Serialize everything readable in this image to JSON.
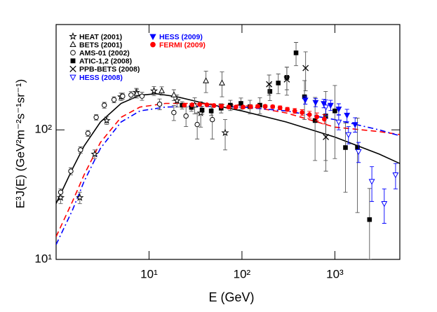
{
  "chart_data": {
    "type": "scatter",
    "xlabel": "E (GeV)",
    "ylabel": "E³J(E) (GeV²m⁻²s⁻¹sr⁻¹)",
    "xlog": true,
    "ylog": true,
    "xlim": [
      1,
      5000
    ],
    "ylim": [
      10,
      650
    ],
    "xticks": [
      {
        "value": 10,
        "label": "10¹"
      },
      {
        "value": 100,
        "label": "10²"
      },
      {
        "value": 1000,
        "label": "10³"
      }
    ],
    "yticks": [
      {
        "value": 10,
        "label": "10¹"
      },
      {
        "value": 100,
        "label": "10²"
      }
    ],
    "series": [
      {
        "name": "HEAT (2001)",
        "color": "#000000",
        "marker": "star",
        "x": [
          1.12,
          1.8,
          2.6,
          3.5,
          5,
          7.3,
          11.3,
          20,
          36,
          66
        ],
        "values": [
          30,
          30,
          65,
          118,
          180,
          195,
          200,
          168,
          135,
          95
        ],
        "errors": [
          3,
          3,
          5,
          8,
          12,
          14,
          16,
          18,
          30,
          25
        ]
      },
      {
        "name": "BETS (2001)",
        "color": "#000000",
        "marker": "triangle-up",
        "x": [
          7.4,
          13.7,
          18.5,
          31,
          41,
          61
        ],
        "values": [
          191,
          200,
          186,
          155,
          239,
          230
        ],
        "errors": [
          15,
          15,
          18,
          22,
          45,
          50
        ]
      },
      {
        "name": "AMS-01 (2002)",
        "color": "#000000",
        "marker": "circle",
        "x": [
          1.12,
          1.44,
          1.83,
          2.2,
          2.7,
          3.3,
          4.2,
          5.2,
          6.4,
          8.4,
          13,
          18.5,
          25,
          33,
          48
        ],
        "values": [
          33,
          48,
          70,
          94,
          125,
          155,
          171,
          182,
          186,
          182,
          158,
          136,
          128,
          110,
          120
        ],
        "errors": [
          2,
          3,
          4,
          5,
          6,
          8,
          9,
          10,
          12,
          13,
          15,
          18,
          22,
          25,
          35
        ]
      },
      {
        "name": "ATIC-1,2 (2008)",
        "color": "#000000",
        "marker": "square",
        "x": [
          22.7,
          28.6,
          37.2,
          46.7,
          59.7,
          75,
          97.5,
          122,
          156,
          200,
          246,
          304,
          382,
          471,
          612,
          796,
          1000,
          1300,
          1750,
          2360
        ],
        "values": [
          155,
          149,
          142,
          140,
          147,
          155,
          160,
          151,
          155,
          198,
          230,
          254,
          393,
          180,
          118,
          128,
          140,
          73,
          73,
          20.3
        ],
        "errors": [
          10,
          10,
          10,
          11,
          12,
          14,
          16,
          18,
          22,
          30,
          40,
          50,
          80,
          60,
          60,
          70,
          80,
          40,
          50,
          15
        ]
      },
      {
        "name": "PPB-BETS (2008)",
        "color": "#000000",
        "marker": "cross",
        "x": [
          196,
          304,
          484,
          800
        ],
        "values": [
          225,
          245,
          300,
          88
        ],
        "errors": [
          40,
          60,
          100,
          40
        ]
      },
      {
        "name": "HESS (2008)",
        "color": "#0000ff",
        "marker": "triangle-down",
        "x": [
          800,
          1100,
          1400,
          1800,
          2500,
          3400,
          4500
        ],
        "values": [
          150,
          115,
          92,
          68,
          40,
          27,
          45
        ],
        "errors": [
          20,
          15,
          14,
          12,
          12,
          8,
          10
        ]
      },
      {
        "name": "HESS (2009)",
        "color": "#0000ff",
        "marker": "triangle-down-filled",
        "x": [
          480,
          620,
          760,
          900,
          1100,
          1350,
          1650
        ],
        "values": [
          170,
          163,
          160,
          155,
          145,
          130,
          110
        ],
        "errors": [
          12,
          12,
          12,
          14,
          14,
          14,
          14
        ]
      },
      {
        "name": "FERMI (2009)",
        "color": "#ff0000",
        "marker": "circle-filled",
        "x": [
          24,
          29,
          35,
          42,
          50,
          60,
          72,
          86,
          103,
          124,
          148,
          178,
          214,
          257,
          308,
          370,
          444,
          533,
          640,
          770
        ],
        "values": [
          155,
          156,
          157,
          156,
          154,
          152,
          150,
          150,
          150,
          151,
          152,
          152,
          151,
          148,
          144,
          140,
          136,
          131,
          126,
          121
        ],
        "errors": [
          3,
          3,
          3,
          3,
          3,
          3,
          3,
          3,
          3,
          4,
          4,
          4,
          4,
          5,
          5,
          6,
          7,
          8,
          9,
          10
        ]
      }
    ],
    "curves": [
      {
        "color": "#000000",
        "dash": "solid",
        "x": [
          1,
          1.5,
          2,
          3,
          5,
          8,
          12,
          20,
          40,
          100,
          300,
          1000,
          3000,
          5000
        ],
        "values": [
          27,
          50,
          75,
          115,
          160,
          185,
          190,
          180,
          160,
          140,
          115,
          88,
          65,
          55
        ]
      },
      {
        "color": "#ff0000",
        "dash": "dashed",
        "x": [
          1,
          1.5,
          2,
          3,
          5,
          8,
          15,
          30,
          100,
          300,
          1000,
          3000,
          5000
        ],
        "values": [
          15,
          28,
          45,
          80,
          125,
          150,
          160,
          160,
          155,
          135,
          105,
          97,
          92
        ]
      },
      {
        "color": "#0000ff",
        "dash": "dash-dot",
        "x": [
          1,
          1.5,
          2,
          3,
          5,
          8,
          15,
          30,
          100,
          300,
          1000,
          3000,
          5000
        ],
        "values": [
          13,
          24,
          40,
          72,
          115,
          140,
          150,
          152,
          150,
          140,
          120,
          100,
          90
        ]
      }
    ]
  }
}
